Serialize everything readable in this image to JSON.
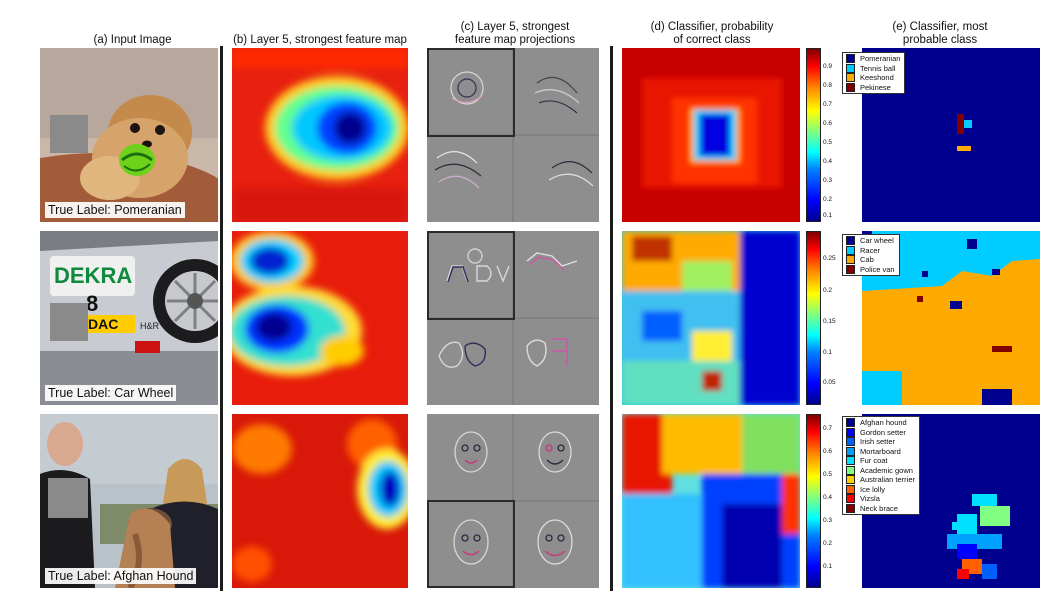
{
  "headers": {
    "a": "(a) Input Image",
    "b": "(b) Layer 5, strongest feature map",
    "c": "(c) Layer 5, strongest\nfeature map projections",
    "d": "(d) Classifier, probability\nof correct class",
    "e": "(e) Classifier, most\nprobable class"
  },
  "rows": [
    {
      "true_label": "True Label: Pomeranian",
      "colorbar_ticks": [
        "0.9",
        "0.8",
        "0.7",
        "0.6",
        "0.5",
        "0.4",
        "0.3",
        "0.2",
        "0.1"
      ],
      "legend": [
        {
          "label": "Pomeranian",
          "color": "#00008f"
        },
        {
          "label": "Tennis ball",
          "color": "#00ccff"
        },
        {
          "label": "Keeshond",
          "color": "#ffaa00"
        },
        {
          "label": "Pekinese",
          "color": "#800000"
        }
      ]
    },
    {
      "true_label": "True Label: Car Wheel",
      "image_text": [
        "DEKRA",
        "8",
        "DAC",
        "H&R"
      ],
      "colorbar_ticks": [
        "0.25",
        "0.2",
        "0.15",
        "0.1",
        "0.05"
      ],
      "legend": [
        {
          "label": "Car wheel",
          "color": "#00008f"
        },
        {
          "label": "Racer",
          "color": "#00ccff"
        },
        {
          "label": "Cab",
          "color": "#ffaa00"
        },
        {
          "label": "Police van",
          "color": "#800000"
        }
      ]
    },
    {
      "true_label": "True Label: Afghan Hound",
      "colorbar_ticks": [
        "0.7",
        "0.6",
        "0.5",
        "0.4",
        "0.3",
        "0.2",
        "0.1"
      ],
      "legend": [
        {
          "label": "Afghan hound",
          "color": "#00008f"
        },
        {
          "label": "Gordon setter",
          "color": "#0000ff"
        },
        {
          "label": "Irish setter",
          "color": "#0060ff"
        },
        {
          "label": "Mortarboard",
          "color": "#00a0ff"
        },
        {
          "label": "Fur coat",
          "color": "#00e0ff"
        },
        {
          "label": "Academic gown",
          "color": "#80ff80"
        },
        {
          "label": "Australian terrier",
          "color": "#ffd000"
        },
        {
          "label": "Ice lolly",
          "color": "#ff6000"
        },
        {
          "label": "Vizsla",
          "color": "#ff0000"
        },
        {
          "label": "Neck brace",
          "color": "#800000"
        }
      ]
    }
  ]
}
